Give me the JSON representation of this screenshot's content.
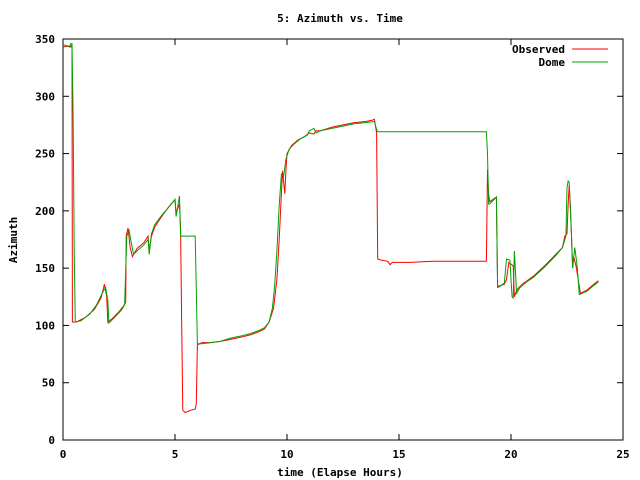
{
  "chart_data": {
    "type": "line",
    "title": "5: Azimuth vs. Time",
    "xlabel": "time (Elapse Hours)",
    "ylabel": "Azimuth",
    "xlim": [
      0,
      25
    ],
    "ylim": [
      0,
      350
    ],
    "xticks": [
      0,
      5,
      10,
      15,
      20,
      25
    ],
    "yticks": [
      0,
      50,
      100,
      150,
      200,
      250,
      300,
      350
    ],
    "legend_position": "top-right",
    "grid": false,
    "series": [
      {
        "name": "Observed",
        "color": "#ff0000",
        "points": [
          [
            0,
            343
          ],
          [
            0.3,
            344
          ],
          [
            0.35,
            343
          ],
          [
            0.4,
            345
          ],
          [
            0.42,
            103
          ],
          [
            0.6,
            103
          ],
          [
            1.0,
            107
          ],
          [
            1.4,
            114
          ],
          [
            1.7,
            124
          ],
          [
            1.85,
            136
          ],
          [
            1.95,
            125
          ],
          [
            2.0,
            103
          ],
          [
            2.2,
            106
          ],
          [
            2.5,
            112
          ],
          [
            2.7,
            117
          ],
          [
            2.8,
            120
          ],
          [
            2.82,
            178
          ],
          [
            2.9,
            185
          ],
          [
            3.0,
            168
          ],
          [
            3.1,
            160
          ],
          [
            3.3,
            167
          ],
          [
            3.6,
            172
          ],
          [
            3.8,
            178
          ],
          [
            3.85,
            165
          ],
          [
            3.95,
            178
          ],
          [
            4.1,
            186
          ],
          [
            4.4,
            195
          ],
          [
            4.7,
            203
          ],
          [
            5.0,
            210
          ],
          [
            5.05,
            198
          ],
          [
            5.2,
            206
          ],
          [
            5.25,
            183
          ],
          [
            5.3,
            100
          ],
          [
            5.35,
            26
          ],
          [
            5.45,
            24
          ],
          [
            5.7,
            26
          ],
          [
            5.9,
            27
          ],
          [
            5.95,
            32
          ],
          [
            6.0,
            83
          ],
          [
            6.2,
            85
          ],
          [
            6.6,
            85
          ],
          [
            7.0,
            86
          ],
          [
            7.5,
            88
          ],
          [
            8.0,
            90
          ],
          [
            8.4,
            92
          ],
          [
            8.8,
            95
          ],
          [
            9.0,
            97
          ],
          [
            9.2,
            103
          ],
          [
            9.4,
            115
          ],
          [
            9.55,
            140
          ],
          [
            9.65,
            175
          ],
          [
            9.75,
            215
          ],
          [
            9.8,
            235
          ],
          [
            9.9,
            215
          ],
          [
            9.95,
            235
          ],
          [
            10.0,
            250
          ],
          [
            10.2,
            257
          ],
          [
            10.5,
            262
          ],
          [
            10.8,
            265
          ],
          [
            11.0,
            268
          ],
          [
            11.2,
            267
          ],
          [
            11.3,
            270
          ],
          [
            11.5,
            270
          ],
          [
            12.0,
            273
          ],
          [
            12.5,
            275
          ],
          [
            13.0,
            277
          ],
          [
            13.5,
            278
          ],
          [
            13.8,
            279
          ],
          [
            13.9,
            280
          ],
          [
            14.0,
            268
          ],
          [
            14.05,
            158
          ],
          [
            14.2,
            157
          ],
          [
            14.5,
            156
          ],
          [
            14.6,
            153
          ],
          [
            14.7,
            155
          ],
          [
            15.5,
            155
          ],
          [
            16.5,
            156
          ],
          [
            18.0,
            156
          ],
          [
            18.9,
            156
          ],
          [
            18.95,
            236
          ],
          [
            19.0,
            215
          ],
          [
            19.05,
            208
          ],
          [
            19.35,
            212
          ],
          [
            19.4,
            134
          ],
          [
            19.7,
            136
          ],
          [
            19.8,
            140
          ],
          [
            19.9,
            155
          ],
          [
            20.1,
            152
          ],
          [
            20.15,
            125
          ],
          [
            20.2,
            128
          ],
          [
            20.3,
            132
          ],
          [
            20.5,
            136
          ],
          [
            21.0,
            143
          ],
          [
            21.5,
            152
          ],
          [
            22.0,
            162
          ],
          [
            22.3,
            168
          ],
          [
            22.4,
            178
          ],
          [
            22.5,
            180
          ],
          [
            22.55,
            205
          ],
          [
            22.6,
            222
          ],
          [
            22.65,
            205
          ],
          [
            22.7,
            178
          ],
          [
            22.75,
            150
          ],
          [
            22.8,
            160
          ],
          [
            22.9,
            152
          ],
          [
            23.0,
            140
          ],
          [
            23.1,
            128
          ],
          [
            23.4,
            131
          ],
          [
            23.7,
            136
          ],
          [
            23.9,
            139
          ]
        ]
      },
      {
        "name": "Dome",
        "color": "#00a000",
        "points": [
          [
            0,
            345
          ],
          [
            0.2,
            344
          ],
          [
            0.3,
            343
          ],
          [
            0.35,
            346
          ],
          [
            0.4,
            346
          ],
          [
            0.45,
            285
          ],
          [
            0.5,
            165
          ],
          [
            0.55,
            103
          ],
          [
            0.8,
            104
          ],
          [
            1.2,
            110
          ],
          [
            1.5,
            118
          ],
          [
            1.8,
            130
          ],
          [
            1.9,
            133
          ],
          [
            2.0,
            122
          ],
          [
            2.05,
            102
          ],
          [
            2.3,
            107
          ],
          [
            2.6,
            113
          ],
          [
            2.75,
            118
          ],
          [
            2.85,
            178
          ],
          [
            2.95,
            183
          ],
          [
            3.05,
            172
          ],
          [
            3.15,
            162
          ],
          [
            3.3,
            165
          ],
          [
            3.6,
            170
          ],
          [
            3.8,
            175
          ],
          [
            3.85,
            162
          ],
          [
            3.95,
            180
          ],
          [
            4.1,
            188
          ],
          [
            4.4,
            196
          ],
          [
            4.8,
            205
          ],
          [
            5.0,
            210
          ],
          [
            5.05,
            195
          ],
          [
            5.2,
            213
          ],
          [
            5.25,
            178
          ],
          [
            5.5,
            178
          ],
          [
            5.9,
            178
          ],
          [
            6.0,
            84
          ],
          [
            6.2,
            84
          ],
          [
            6.6,
            85
          ],
          [
            7.0,
            86
          ],
          [
            7.5,
            89
          ],
          [
            8.0,
            91
          ],
          [
            8.4,
            93
          ],
          [
            8.8,
            96
          ],
          [
            9.0,
            98
          ],
          [
            9.2,
            103
          ],
          [
            9.35,
            115
          ],
          [
            9.45,
            135
          ],
          [
            9.55,
            165
          ],
          [
            9.65,
            205
          ],
          [
            9.75,
            232
          ],
          [
            9.85,
            230
          ],
          [
            9.95,
            245
          ],
          [
            10.1,
            254
          ],
          [
            10.3,
            258
          ],
          [
            10.6,
            263
          ],
          [
            10.9,
            266
          ],
          [
            11.0,
            270
          ],
          [
            11.2,
            272
          ],
          [
            11.3,
            268
          ],
          [
            11.5,
            270
          ],
          [
            12.0,
            272
          ],
          [
            12.5,
            274
          ],
          [
            13.0,
            276
          ],
          [
            13.5,
            277
          ],
          [
            13.9,
            278
          ],
          [
            14.0,
            271
          ],
          [
            14.05,
            269
          ],
          [
            15.0,
            269
          ],
          [
            16.5,
            269
          ],
          [
            18.0,
            269
          ],
          [
            18.9,
            269
          ],
          [
            18.95,
            250
          ],
          [
            19.0,
            206
          ],
          [
            19.05,
            206
          ],
          [
            19.35,
            212
          ],
          [
            19.4,
            133
          ],
          [
            19.5,
            134
          ],
          [
            19.7,
            137
          ],
          [
            19.8,
            158
          ],
          [
            19.95,
            157
          ],
          [
            20.0,
            140
          ],
          [
            20.05,
            125
          ],
          [
            20.1,
            124
          ],
          [
            20.15,
            165
          ],
          [
            20.25,
            128
          ],
          [
            20.4,
            133
          ],
          [
            20.7,
            138
          ],
          [
            21.0,
            142
          ],
          [
            21.5,
            151
          ],
          [
            22.0,
            161
          ],
          [
            22.3,
            168
          ],
          [
            22.45,
            178
          ],
          [
            22.5,
            220
          ],
          [
            22.55,
            226
          ],
          [
            22.6,
            225
          ],
          [
            22.7,
            178
          ],
          [
            22.75,
            150
          ],
          [
            22.85,
            168
          ],
          [
            22.95,
            152
          ],
          [
            23.05,
            127
          ],
          [
            23.4,
            130
          ],
          [
            23.7,
            135
          ],
          [
            23.9,
            138
          ]
        ]
      }
    ]
  }
}
